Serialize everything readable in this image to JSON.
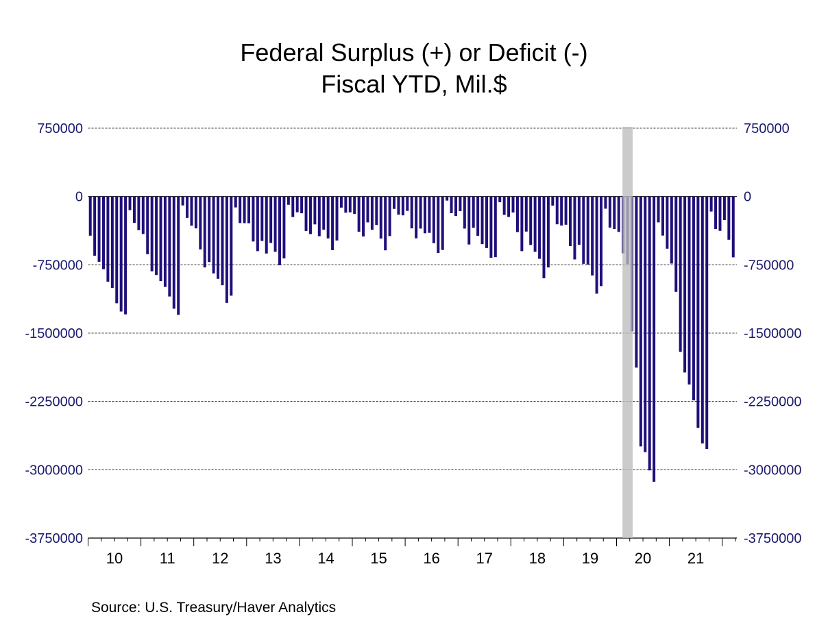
{
  "chart_data": {
    "type": "bar",
    "title": "Federal Surplus (+) or Deficit (-)",
    "subtitle": "Fiscal YTD, Mil.$",
    "xlabel": "",
    "ylabel": "",
    "source": "Source:  U.S. Treasury/Haver Analytics",
    "frequency": "monthly",
    "start": "2010-01",
    "end": "2022-03",
    "ylim": [
      -3750000,
      750000
    ],
    "yticks": [
      750000,
      0,
      -750000,
      -1500000,
      -2250000,
      -3000000,
      -3750000
    ],
    "ytick_labels": [
      "750000",
      "0",
      "-750000",
      "-1500000",
      "-2250000",
      "-3000000",
      "-3750000"
    ],
    "y_axis_both_sides": true,
    "grid": "horizontal dashed",
    "xtick_labels": [
      "10",
      "11",
      "12",
      "13",
      "14",
      "15",
      "16",
      "17",
      "18",
      "19",
      "20",
      "21"
    ],
    "recession_shading": {
      "start": "2020-02",
      "end": "2020-04"
    },
    "series": [
      {
        "name": "Federal Surplus (+) or Deficit (-), Fiscal YTD",
        "color": "#1f0f7a",
        "values": [
          -430000,
          -651000,
          -717000,
          -799000,
          -935000,
          -1003000,
          -1172000,
          -1263000,
          -1294000,
          -150000,
          -290000,
          -370000,
          -412000,
          -634000,
          -822000,
          -862000,
          -929000,
          -993000,
          -1098000,
          -1232000,
          -1299000,
          -98000,
          -235000,
          -321000,
          -350000,
          -581000,
          -779000,
          -720000,
          -845000,
          -904000,
          -974000,
          -1168000,
          -1089000,
          -120000,
          -292000,
          -293000,
          -294000,
          -494000,
          -600000,
          -488000,
          -626000,
          -510000,
          -607000,
          -755000,
          -680000,
          -91000,
          -226000,
          -173000,
          -184000,
          -378000,
          -413000,
          -306000,
          -436000,
          -365000,
          -460000,
          -589000,
          -483000,
          -122000,
          -178000,
          -174000,
          -192000,
          -387000,
          -439000,
          -284000,
          -366000,
          -313000,
          -462000,
          -591000,
          -435000,
          -136000,
          -200000,
          -207000,
          -158000,
          -350000,
          -459000,
          -352000,
          -404000,
          -399000,
          -513000,
          -620000,
          -587000,
          -45000,
          -183000,
          -214000,
          -160000,
          -352000,
          -527000,
          -344000,
          -432000,
          -523000,
          -566000,
          -674000,
          -666000,
          -63000,
          -202000,
          -225000,
          -176000,
          -391000,
          -600000,
          -385000,
          -532000,
          -607000,
          -684000,
          -898000,
          -779000,
          -100000,
          -305000,
          -319000,
          -310000,
          -544000,
          -691000,
          -531000,
          -739000,
          -747000,
          -867000,
          -1067000,
          -984000,
          -134000,
          -342000,
          -357000,
          -389000,
          -624000,
          -743000,
          -1481000,
          -1879000,
          -2744000,
          -2807000,
          -3007000,
          -3132000,
          -284000,
          -429000,
          -573000,
          -736000,
          -1047000,
          -1706000,
          -1932000,
          -2064000,
          -2238000,
          -2540000,
          -2711000,
          -2772000,
          -165000,
          -357000,
          -377000,
          -259000,
          -475000,
          -668000
        ]
      }
    ]
  }
}
